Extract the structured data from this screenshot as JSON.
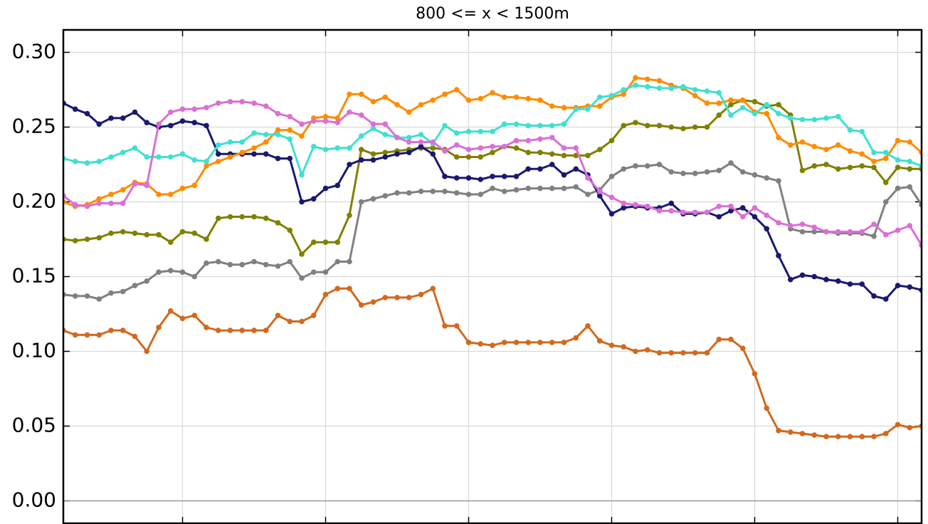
{
  "chart_data": {
    "type": "line",
    "title": "800 <= x < 1500m",
    "x": [
      0,
      1,
      2,
      3,
      4,
      5,
      6,
      7,
      8,
      9,
      10,
      11,
      12,
      13,
      14,
      15,
      16,
      17,
      18,
      19,
      20,
      21,
      22,
      23,
      24,
      25,
      26,
      27,
      28,
      29,
      30,
      31,
      32,
      33,
      34,
      35,
      36,
      37,
      38,
      39,
      40,
      41,
      42,
      43,
      44,
      45,
      46,
      47,
      48,
      49,
      50,
      51,
      52,
      53,
      54,
      55,
      56,
      57,
      58,
      59,
      60,
      61,
      62,
      63,
      64,
      65,
      66,
      67,
      68,
      69,
      70,
      71,
      72
    ],
    "xlim": [
      0,
      72
    ],
    "xticks": [
      10,
      22,
      34,
      46,
      58,
      70
    ],
    "ylim": [
      -0.015,
      0.315
    ],
    "yticks": [
      {
        "value": 0,
        "label": "0.00"
      },
      {
        "value": 0.05,
        "label": "0.05"
      },
      {
        "value": 0.1,
        "label": "0.10"
      },
      {
        "value": 0.15,
        "label": "0.15"
      },
      {
        "value": 0.2,
        "label": "0.20"
      },
      {
        "value": 0.25,
        "label": "0.25"
      },
      {
        "value": 0.3,
        "label": "0.30"
      }
    ],
    "grid": true,
    "series": [
      {
        "color": "#d2691e",
        "values": [
          0.114,
          0.111,
          0.111,
          0.111,
          0.114,
          0.114,
          0.11,
          0.1,
          0.116,
          0.127,
          0.122,
          0.124,
          0.116,
          0.114,
          0.114,
          0.114,
          0.114,
          0.114,
          0.124,
          0.12,
          0.12,
          0.124,
          0.138,
          0.142,
          0.142,
          0.131,
          0.133,
          0.136,
          0.136,
          0.136,
          0.138,
          0.142,
          0.117,
          0.117,
          0.106,
          0.105,
          0.104,
          0.106,
          0.106,
          0.106,
          0.106,
          0.106,
          0.106,
          0.109,
          0.117,
          0.107,
          0.104,
          0.103,
          0.1,
          0.101,
          0.099,
          0.099,
          0.099,
          0.099,
          0.099,
          0.108,
          0.108,
          0.102,
          0.085,
          0.062,
          0.047,
          0.046,
          0.045,
          0.044,
          0.043,
          0.043,
          0.043,
          0.043,
          0.043,
          0.045,
          0.051,
          0.049,
          0.05
        ]
      },
      {
        "color": "#808080",
        "values": [
          0.138,
          0.137,
          0.137,
          0.135,
          0.139,
          0.14,
          0.144,
          0.147,
          0.153,
          0.154,
          0.153,
          0.15,
          0.159,
          0.16,
          0.158,
          0.158,
          0.16,
          0.158,
          0.157,
          0.16,
          0.149,
          0.153,
          0.153,
          0.16,
          0.16,
          0.2,
          0.202,
          0.204,
          0.206,
          0.206,
          0.207,
          0.207,
          0.207,
          0.206,
          0.205,
          0.205,
          0.209,
          0.207,
          0.208,
          0.209,
          0.209,
          0.209,
          0.209,
          0.21,
          0.205,
          0.208,
          0.217,
          0.222,
          0.224,
          0.224,
          0.225,
          0.22,
          0.219,
          0.219,
          0.22,
          0.221,
          0.226,
          0.22,
          0.218,
          0.216,
          0.214,
          0.182,
          0.18,
          0.18,
          0.18,
          0.179,
          0.179,
          0.179,
          0.177,
          0.2,
          0.209,
          0.21,
          0.198
        ]
      },
      {
        "color": "#808000",
        "values": [
          0.175,
          0.174,
          0.175,
          0.176,
          0.179,
          0.18,
          0.179,
          0.178,
          0.178,
          0.173,
          0.18,
          0.179,
          0.175,
          0.189,
          0.19,
          0.19,
          0.19,
          0.189,
          0.186,
          0.181,
          0.165,
          0.173,
          0.173,
          0.173,
          0.191,
          0.235,
          0.232,
          0.233,
          0.234,
          0.235,
          0.236,
          0.236,
          0.235,
          0.23,
          0.23,
          0.23,
          0.233,
          0.237,
          0.236,
          0.233,
          0.233,
          0.232,
          0.231,
          0.231,
          0.231,
          0.235,
          0.241,
          0.251,
          0.253,
          0.251,
          0.251,
          0.25,
          0.249,
          0.25,
          0.25,
          0.258,
          0.265,
          0.268,
          0.267,
          0.264,
          0.265,
          0.258,
          0.221,
          0.224,
          0.225,
          0.222,
          0.223,
          0.224,
          0.223,
          0.213,
          0.223,
          0.222,
          0.222
        ]
      },
      {
        "color": "#191970",
        "values": [
          0.266,
          0.262,
          0.259,
          0.252,
          0.256,
          0.256,
          0.26,
          0.253,
          0.25,
          0.251,
          0.254,
          0.253,
          0.251,
          0.232,
          0.232,
          0.232,
          0.232,
          0.232,
          0.229,
          0.229,
          0.2,
          0.202,
          0.209,
          0.211,
          0.225,
          0.228,
          0.228,
          0.23,
          0.232,
          0.233,
          0.237,
          0.232,
          0.217,
          0.216,
          0.216,
          0.215,
          0.217,
          0.217,
          0.217,
          0.222,
          0.222,
          0.225,
          0.218,
          0.222,
          0.218,
          0.204,
          0.192,
          0.196,
          0.197,
          0.196,
          0.196,
          0.199,
          0.192,
          0.192,
          0.193,
          0.19,
          0.194,
          0.196,
          0.19,
          0.182,
          0.164,
          0.148,
          0.151,
          0.15,
          0.148,
          0.147,
          0.145,
          0.145,
          0.137,
          0.135,
          0.144,
          0.143,
          0.141
        ]
      },
      {
        "color": "#ff8c00",
        "values": [
          0.2,
          0.197,
          0.198,
          0.202,
          0.205,
          0.208,
          0.213,
          0.212,
          0.205,
          0.205,
          0.209,
          0.211,
          0.224,
          0.227,
          0.23,
          0.233,
          0.236,
          0.24,
          0.248,
          0.248,
          0.244,
          0.256,
          0.257,
          0.256,
          0.272,
          0.272,
          0.267,
          0.27,
          0.265,
          0.26,
          0.265,
          0.268,
          0.272,
          0.275,
          0.268,
          0.269,
          0.273,
          0.27,
          0.27,
          0.269,
          0.268,
          0.264,
          0.263,
          0.263,
          0.264,
          0.264,
          0.27,
          0.272,
          0.283,
          0.282,
          0.281,
          0.278,
          0.276,
          0.271,
          0.266,
          0.266,
          0.268,
          0.268,
          0.26,
          0.259,
          0.243,
          0.238,
          0.24,
          0.237,
          0.235,
          0.238,
          0.234,
          0.232,
          0.227,
          0.229,
          0.241,
          0.24,
          0.233
        ]
      },
      {
        "color": "#40e0d0",
        "values": [
          0.229,
          0.227,
          0.226,
          0.227,
          0.23,
          0.233,
          0.236,
          0.23,
          0.23,
          0.23,
          0.232,
          0.228,
          0.227,
          0.238,
          0.24,
          0.24,
          0.246,
          0.245,
          0.245,
          0.242,
          0.218,
          0.237,
          0.235,
          0.236,
          0.236,
          0.244,
          0.249,
          0.245,
          0.243,
          0.243,
          0.245,
          0.239,
          0.251,
          0.246,
          0.247,
          0.247,
          0.247,
          0.252,
          0.252,
          0.251,
          0.251,
          0.251,
          0.252,
          0.262,
          0.262,
          0.27,
          0.271,
          0.275,
          0.278,
          0.277,
          0.276,
          0.276,
          0.277,
          0.275,
          0.274,
          0.273,
          0.258,
          0.263,
          0.259,
          0.265,
          0.259,
          0.256,
          0.255,
          0.255,
          0.256,
          0.257,
          0.248,
          0.247,
          0.233,
          0.233,
          0.228,
          0.227,
          0.224
        ]
      },
      {
        "color": "#da70d6",
        "values": [
          0.204,
          0.198,
          0.197,
          0.199,
          0.199,
          0.199,
          0.212,
          0.211,
          0.252,
          0.26,
          0.262,
          0.262,
          0.263,
          0.266,
          0.267,
          0.267,
          0.266,
          0.264,
          0.259,
          0.257,
          0.252,
          0.254,
          0.254,
          0.253,
          0.26,
          0.258,
          0.252,
          0.252,
          0.243,
          0.24,
          0.24,
          0.24,
          0.234,
          0.238,
          0.235,
          0.236,
          0.237,
          0.237,
          0.241,
          0.241,
          0.242,
          0.243,
          0.236,
          0.236,
          0.216,
          0.207,
          0.203,
          0.199,
          0.198,
          0.197,
          0.194,
          0.194,
          0.193,
          0.193,
          0.193,
          0.197,
          0.197,
          0.19,
          0.196,
          0.191,
          0.186,
          0.184,
          0.185,
          0.183,
          0.18,
          0.18,
          0.18,
          0.18,
          0.185,
          0.178,
          0.181,
          0.184,
          0.171
        ]
      }
    ]
  }
}
